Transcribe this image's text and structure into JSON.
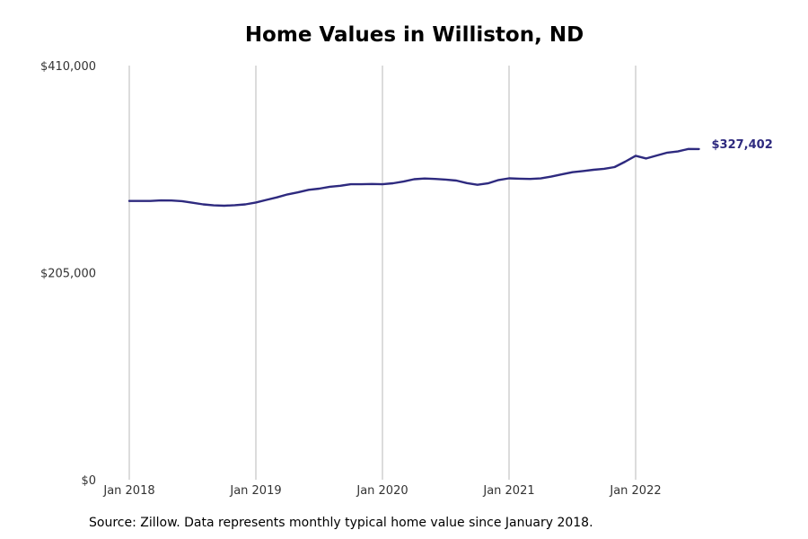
{
  "chart_data": {
    "type": "line",
    "title": "Home Values in Williston, ND",
    "xlabel": "",
    "ylabel": "",
    "x_tick_labels": [
      "Jan 2018",
      "Jan 2019",
      "Jan 2020",
      "Jan 2021",
      "Jan 2022"
    ],
    "y_tick_labels": [
      "$0",
      "$205,000",
      "$410,000"
    ],
    "y_ticks": [
      0,
      205000,
      410000
    ],
    "ylim": [
      0,
      410000
    ],
    "xlim": [
      "2018-01",
      "2022-12"
    ],
    "grid": "vertical",
    "line_color": "#2e2a7f",
    "last_value_label": "$327,402",
    "series": [
      {
        "x": [
          "2018-01",
          "2018-02",
          "2018-03",
          "2018-04",
          "2018-05",
          "2018-06",
          "2018-07",
          "2018-08",
          "2018-09",
          "2018-10",
          "2018-11",
          "2018-12",
          "2019-01",
          "2019-02",
          "2019-03",
          "2019-04",
          "2019-05",
          "2019-06",
          "2019-07",
          "2019-08",
          "2019-09",
          "2019-10",
          "2019-11",
          "2019-12",
          "2020-01",
          "2020-02",
          "2020-03",
          "2020-04",
          "2020-05",
          "2020-06",
          "2020-07",
          "2020-08",
          "2020-09",
          "2020-10",
          "2020-11",
          "2020-12",
          "2021-01",
          "2021-02",
          "2021-03",
          "2021-04",
          "2021-05",
          "2021-06",
          "2021-07",
          "2021-08",
          "2021-09",
          "2021-10",
          "2021-11",
          "2021-12",
          "2022-01",
          "2022-02",
          "2022-03",
          "2022-04",
          "2022-05",
          "2022-06",
          "2022-07"
        ],
        "values": [
          276000,
          276000,
          276000,
          276500,
          276400,
          275800,
          274200,
          272600,
          271600,
          271300,
          271800,
          272600,
          274500,
          277000,
          279500,
          282500,
          284500,
          287000,
          288200,
          290000,
          291000,
          292500,
          292500,
          292800,
          292500,
          293500,
          295200,
          297500,
          298200,
          297800,
          297100,
          296200,
          293700,
          292000,
          293400,
          296700,
          298400,
          298000,
          297800,
          298300,
          300100,
          302300,
          304400,
          305600,
          306800,
          307800,
          309500,
          314800,
          320700,
          318000,
          321000,
          323800,
          325000,
          327500,
          327402
        ]
      }
    ]
  },
  "footnote": "Source: Zillow. Data represents monthly typical home value since January 2018."
}
